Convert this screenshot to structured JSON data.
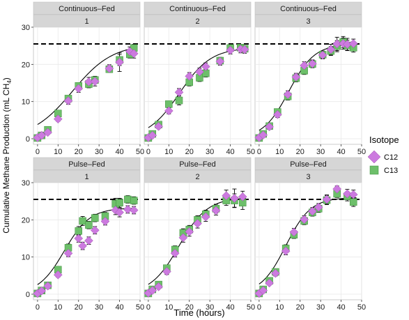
{
  "chart_data": {
    "type": "scatter",
    "xlabel": "Time (hours)",
    "ylabel": "Cumulative Methane Production (mL CH",
    "ylabel_sub": "4",
    "ylabel_close": ")",
    "xlim": [
      -2,
      50
    ],
    "ylim": [
      -1.5,
      30
    ],
    "x_ticks": [
      0,
      10,
      20,
      30,
      40,
      50
    ],
    "y_ticks": [
      0,
      10,
      20,
      30
    ],
    "reference_line": {
      "y": 25.5,
      "style": "dashed"
    },
    "grid": true,
    "legend": {
      "title": "Isotope",
      "position": "right",
      "entries": [
        {
          "label": "C12",
          "shape": "diamond",
          "color": "#cc7adf"
        },
        {
          "label": "C13",
          "shape": "square",
          "color": "#6dbf6a"
        }
      ]
    },
    "colors": {
      "c12": "#cc7adf",
      "c13": "#6dbf6a",
      "strip": "#d6d6d6",
      "panel_border": "#bfbfbf",
      "grid": "#e9e9e9"
    },
    "panels": [
      {
        "strip_top": "Continuous–Fed",
        "strip_bottom": "1",
        "curve": {
          "A": 25.5,
          "k": 0.102,
          "t0": 17
        },
        "C12": {
          "x": [
            0,
            2,
            5,
            10,
            15,
            20,
            25,
            28,
            35,
            40,
            45,
            47
          ],
          "y": [
            0.3,
            0.9,
            1.7,
            5.3,
            10.2,
            13.5,
            15.3,
            15.4,
            18.9,
            20.6,
            23.5,
            22.9
          ],
          "err": [
            0.3,
            0.4,
            0.4,
            0.6,
            0.9,
            1.0,
            1.2,
            1.2,
            1.0,
            2.5,
            1.2,
            1.2
          ]
        },
        "C13": {
          "x": [
            0,
            2,
            5,
            10,
            15,
            20,
            25,
            28,
            35,
            40,
            45,
            47
          ],
          "y": [
            0.2,
            0.9,
            2.4,
            6.8,
            10.8,
            14.2,
            14.7,
            15.8,
            18.7,
            21.2,
            22.7,
            24.4
          ],
          "err": [
            0.2,
            0.3,
            0.4,
            0.6,
            0.8,
            0.9,
            1.0,
            1.0,
            0.9,
            1.5,
            1.0,
            1.0
          ]
        }
      },
      {
        "strip_top": "Continuous–Fed",
        "strip_bottom": "2",
        "curve": {
          "A": 24.5,
          "k": 0.13,
          "t0": 15.2
        },
        "C12": {
          "x": [
            0,
            2,
            5,
            10,
            15,
            20,
            25,
            28,
            35,
            40,
            45,
            47
          ],
          "y": [
            0.3,
            0.9,
            3.3,
            7.5,
            12.5,
            16.8,
            18.0,
            19.4,
            20.8,
            23.8,
            24.1,
            24.0
          ],
          "err": [
            0.3,
            0.4,
            0.6,
            0.8,
            1.0,
            1.0,
            1.0,
            1.0,
            1.0,
            1.0,
            1.0,
            1.0
          ]
        },
        "C13": {
          "x": [
            0,
            2,
            5,
            10,
            15,
            20,
            25,
            28,
            35,
            40,
            45,
            47
          ],
          "y": [
            0.2,
            1.3,
            3.8,
            9.3,
            10.3,
            15.2,
            16.4,
            17.6,
            21.0,
            24.4,
            24.5,
            24.2
          ],
          "err": [
            0.2,
            0.4,
            0.6,
            0.8,
            1.2,
            1.0,
            1.0,
            1.0,
            0.9,
            0.8,
            0.8,
            0.8
          ]
        }
      },
      {
        "strip_top": "Continuous–Fed",
        "strip_bottom": "3",
        "curve": {
          "A": 25.5,
          "k": 0.16,
          "t0": 14.5
        },
        "C12": {
          "x": [
            0,
            2,
            5,
            9,
            14,
            18,
            22,
            26,
            31,
            35,
            38,
            41,
            43,
            46
          ],
          "y": [
            0.3,
            1.0,
            3.2,
            6.5,
            11.9,
            16.6,
            19.7,
            20.2,
            22.5,
            24.0,
            25.5,
            25.6,
            25.4,
            25.6
          ],
          "err": [
            0.3,
            0.4,
            0.6,
            0.8,
            1.0,
            1.0,
            1.0,
            1.0,
            1.0,
            1.4,
            1.8,
            1.5,
            1.6,
            1.2
          ]
        },
        "C13": {
          "x": [
            0,
            2,
            5,
            9,
            14,
            18,
            22,
            26,
            31,
            35,
            38,
            41,
            43,
            46
          ],
          "y": [
            0.2,
            1.3,
            3.4,
            7.2,
            11.4,
            16.3,
            18.3,
            20.1,
            22.6,
            23.6,
            24.9,
            26.0,
            25.1,
            24.5
          ],
          "err": [
            0.2,
            0.4,
            0.6,
            0.8,
            1.0,
            1.0,
            1.0,
            1.0,
            1.0,
            1.2,
            1.5,
            1.5,
            1.4,
            1.2
          ]
        }
      },
      {
        "strip_top": "Pulse–Fed",
        "strip_bottom": "1",
        "curve": {
          "A": 23.2,
          "k": 0.16,
          "t0": 13
        },
        "C12": {
          "x": [
            0,
            2,
            5,
            10,
            15,
            20,
            22,
            25,
            28,
            33,
            38,
            40,
            44,
            47
          ],
          "y": [
            0.2,
            0.9,
            2.2,
            5.2,
            11.0,
            15.0,
            13.0,
            14.4,
            17.2,
            19.6,
            22.6,
            22.0,
            22.8,
            22.6
          ],
          "err": [
            0.2,
            0.4,
            0.5,
            0.6,
            0.9,
            1.0,
            1.0,
            1.0,
            1.0,
            1.0,
            1.2,
            1.2,
            1.0,
            1.0
          ]
        },
        "C13": {
          "x": [
            0,
            2,
            5,
            10,
            15,
            20,
            22,
            25,
            28,
            33,
            38,
            40,
            44,
            47
          ],
          "y": [
            0.2,
            1.0,
            2.4,
            6.6,
            12.5,
            17.0,
            19.7,
            18.6,
            20.5,
            21.0,
            24.3,
            24.6,
            25.5,
            25.2
          ],
          "err": [
            0.2,
            0.4,
            0.5,
            0.7,
            1.0,
            1.2,
            1.2,
            1.0,
            1.0,
            1.0,
            1.5,
            1.2,
            1.0,
            1.0
          ]
        }
      },
      {
        "strip_top": "Pulse–Fed",
        "strip_bottom": "2",
        "curve": {
          "A": 26.0,
          "k": 0.145,
          "t0": 15
        },
        "C12": {
          "x": [
            0,
            2,
            5,
            9,
            13,
            17,
            20,
            24,
            28,
            33,
            38,
            42,
            46
          ],
          "y": [
            0.3,
            1.0,
            2.0,
            6.1,
            11.0,
            15.2,
            16.8,
            19.0,
            20.8,
            22.5,
            26.5,
            25.8,
            26.2
          ],
          "err": [
            0.3,
            0.4,
            0.5,
            0.8,
            1.0,
            1.2,
            1.2,
            1.2,
            1.2,
            1.2,
            1.5,
            2.5,
            1.5
          ]
        },
        "C13": {
          "x": [
            0,
            2,
            5,
            9,
            13,
            17,
            20,
            24,
            28,
            33,
            38,
            42,
            46
          ],
          "y": [
            0.2,
            1.3,
            2.6,
            7.0,
            12.0,
            16.5,
            17.4,
            20.0,
            21.5,
            23.0,
            25.2,
            25.2,
            24.6
          ],
          "err": [
            0.2,
            0.4,
            0.5,
            0.8,
            1.0,
            1.1,
            1.1,
            1.1,
            1.1,
            1.2,
            1.3,
            1.8,
            1.8
          ]
        }
      },
      {
        "strip_top": "Pulse–Fed",
        "strip_bottom": "3",
        "curve": {
          "A": 26.0,
          "k": 0.165,
          "t0": 13
        },
        "C12": {
          "x": [
            0,
            2,
            5,
            8,
            13,
            17,
            22,
            26,
            29,
            33,
            38,
            43,
            46
          ],
          "y": [
            0.2,
            1.0,
            3.0,
            5.6,
            11.6,
            16.7,
            20.1,
            22.3,
            23.4,
            25.5,
            28.3,
            27.0,
            26.8
          ],
          "err": [
            0.2,
            0.4,
            0.5,
            0.7,
            1.0,
            1.0,
            1.0,
            1.0,
            1.0,
            1.2,
            0.8,
            1.2,
            1.2
          ]
        },
        "C13": {
          "x": [
            0,
            2,
            5,
            8,
            13,
            17,
            22,
            26,
            29,
            33,
            38,
            43,
            46
          ],
          "y": [
            0.2,
            1.3,
            3.6,
            6.0,
            12.3,
            16.0,
            19.7,
            22.0,
            23.0,
            25.3,
            27.0,
            26.3,
            24.8
          ],
          "err": [
            0.2,
            0.4,
            0.5,
            0.7,
            1.0,
            1.0,
            1.0,
            1.0,
            1.0,
            1.2,
            1.0,
            1.2,
            1.2
          ]
        }
      }
    ]
  }
}
